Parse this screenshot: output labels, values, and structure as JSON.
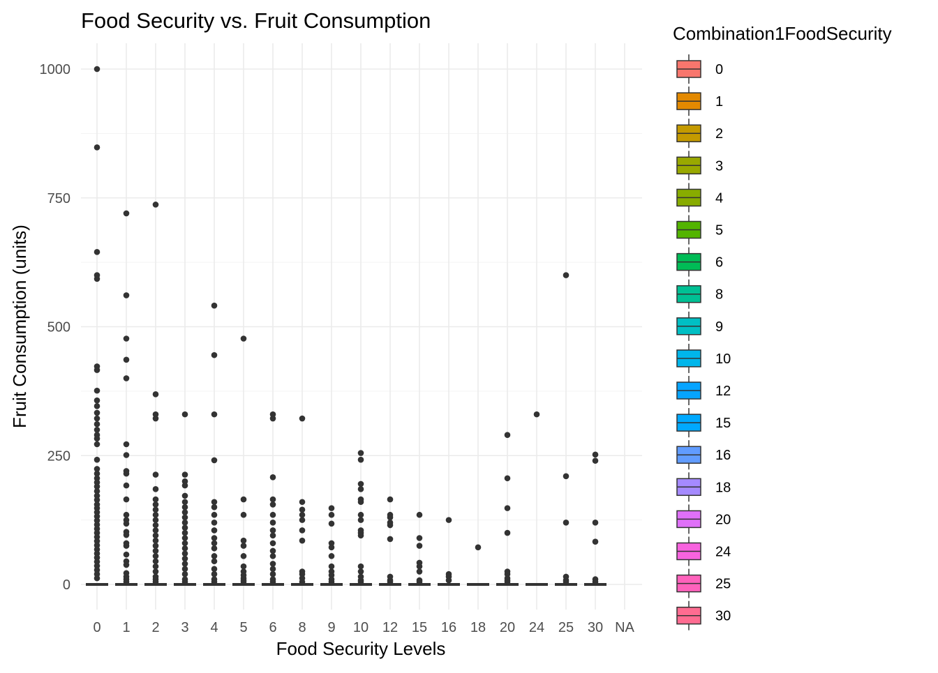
{
  "chart_data": {
    "type": "boxplot",
    "title": "Food Security vs. Fruit Consumption",
    "xlabel": "Food Security Levels",
    "ylabel": "Fruit Consumption (units)",
    "ylim": [
      -50,
      1030
    ],
    "y_ticks": [
      0,
      250,
      500,
      750,
      1000
    ],
    "grid": true,
    "categories": [
      "0",
      "1",
      "2",
      "3",
      "4",
      "5",
      "6",
      "8",
      "9",
      "10",
      "12",
      "15",
      "16",
      "18",
      "20",
      "24",
      "25",
      "30",
      "NA"
    ],
    "legend": {
      "title": "Combination1FoodSecurity",
      "placement": "right",
      "entries": [
        {
          "label": "0",
          "color": "#F8766D"
        },
        {
          "label": "1",
          "color": "#E38900"
        },
        {
          "label": "2",
          "color": "#C49A00"
        },
        {
          "label": "3",
          "color": "#99A800"
        },
        {
          "label": "4",
          "color": "#88AC00"
        },
        {
          "label": "5",
          "color": "#53B400"
        },
        {
          "label": "6",
          "color": "#00BC56"
        },
        {
          "label": "8",
          "color": "#00C094"
        },
        {
          "label": "9",
          "color": "#00BFC4"
        },
        {
          "label": "10",
          "color": "#00B6EB"
        },
        {
          "label": "12",
          "color": "#06A4FF"
        },
        {
          "label": "15",
          "color": "#00A9FF"
        },
        {
          "label": "16",
          "color": "#619CFF"
        },
        {
          "label": "18",
          "color": "#A58AFF"
        },
        {
          "label": "20",
          "color": "#DF70F8"
        },
        {
          "label": "24",
          "color": "#F863DF"
        },
        {
          "label": "25",
          "color": "#FF62BC"
        },
        {
          "label": "30",
          "color": "#FF6C91"
        }
      ]
    },
    "series": [
      {
        "category": "0",
        "median": 0,
        "q1": 0,
        "q3": 0,
        "outliers": [
          1000,
          848,
          645,
          600,
          593,
          423,
          416,
          376,
          357,
          346,
          333,
          322,
          311,
          300,
          290,
          283,
          272,
          242,
          224,
          215,
          206,
          198,
          190,
          181,
          172,
          164,
          155,
          148,
          140,
          132,
          124,
          116,
          108,
          100,
          92,
          84,
          76,
          68,
          60,
          52,
          44,
          36,
          28,
          20,
          12
        ]
      },
      {
        "category": "1",
        "median": 0,
        "q1": 0,
        "q3": 0,
        "outliers": [
          720,
          561,
          477,
          436,
          400,
          272,
          251,
          220,
          215,
          192,
          165,
          135,
          125,
          118,
          102,
          96,
          80,
          75,
          58,
          45,
          38,
          22,
          15,
          10,
          5
        ]
      },
      {
        "category": "2",
        "median": 0,
        "q1": 0,
        "q3": 0,
        "outliers": [
          737,
          369,
          330,
          322,
          213,
          185,
          165,
          155,
          145,
          135,
          125,
          115,
          105,
          95,
          85,
          75,
          65,
          55,
          45,
          35,
          25,
          15,
          10,
          5
        ]
      },
      {
        "category": "3",
        "median": 0,
        "q1": 0,
        "q3": 0,
        "outliers": [
          330,
          213,
          200,
          192,
          172,
          160,
          150,
          140,
          130,
          120,
          110,
          100,
          90,
          80,
          70,
          60,
          50,
          40,
          30,
          20,
          10,
          5
        ]
      },
      {
        "category": "4",
        "median": 0,
        "q1": 0,
        "q3": 0,
        "outliers": [
          541,
          445,
          330,
          241,
          160,
          150,
          135,
          120,
          105,
          90,
          80,
          70,
          55,
          45,
          30,
          20,
          10,
          5
        ]
      },
      {
        "category": "5",
        "median": 0,
        "q1": 0,
        "q3": 0,
        "outliers": [
          477,
          165,
          135,
          85,
          75,
          55,
          35,
          25,
          18,
          12,
          8,
          5
        ]
      },
      {
        "category": "6",
        "median": 0,
        "q1": 0,
        "q3": 0,
        "outliers": [
          330,
          322,
          208,
          165,
          155,
          135,
          120,
          105,
          95,
          80,
          65,
          55,
          40,
          30,
          20,
          10,
          5
        ]
      },
      {
        "category": "8",
        "median": 0,
        "q1": 0,
        "q3": 0,
        "outliers": [
          322,
          160,
          145,
          135,
          125,
          105,
          85,
          25,
          20,
          12,
          5
        ]
      },
      {
        "category": "9",
        "median": 0,
        "q1": 0,
        "q3": 0,
        "outliers": [
          148,
          135,
          118,
          80,
          72,
          55,
          35,
          25,
          18,
          10,
          5
        ]
      },
      {
        "category": "10",
        "median": 0,
        "q1": 0,
        "q3": 0,
        "outliers": [
          255,
          242,
          195,
          185,
          165,
          160,
          135,
          125,
          105,
          100,
          95,
          35,
          25,
          15,
          8,
          5
        ]
      },
      {
        "category": "12",
        "median": 0,
        "q1": 0,
        "q3": 0,
        "outliers": [
          165,
          135,
          130,
          120,
          115,
          88,
          15,
          8,
          5
        ]
      },
      {
        "category": "15",
        "median": 0,
        "q1": 0,
        "q3": 0,
        "outliers": [
          135,
          90,
          75,
          42,
          35,
          25,
          8,
          5
        ]
      },
      {
        "category": "16",
        "median": 0,
        "q1": 0,
        "q3": 0,
        "outliers": [
          125,
          20,
          15,
          8
        ]
      },
      {
        "category": "18",
        "median": 0,
        "q1": 0,
        "q3": 0,
        "outliers": [
          72
        ]
      },
      {
        "category": "20",
        "median": 0,
        "q1": 0,
        "q3": 0,
        "outliers": [
          290,
          206,
          148,
          100,
          25,
          20,
          12,
          8,
          5
        ]
      },
      {
        "category": "24",
        "median": 0,
        "q1": 0,
        "q3": 0,
        "outliers": [
          330
        ]
      },
      {
        "category": "25",
        "median": 0,
        "q1": 0,
        "q3": 0,
        "outliers": [
          600,
          210,
          120,
          15,
          8,
          5
        ]
      },
      {
        "category": "30",
        "median": 0,
        "q1": 0,
        "q3": 0,
        "outliers": [
          252,
          240,
          120,
          83,
          10,
          5
        ]
      },
      {
        "category": "NA",
        "median": null,
        "q1": null,
        "q3": null,
        "outliers": []
      }
    ]
  }
}
